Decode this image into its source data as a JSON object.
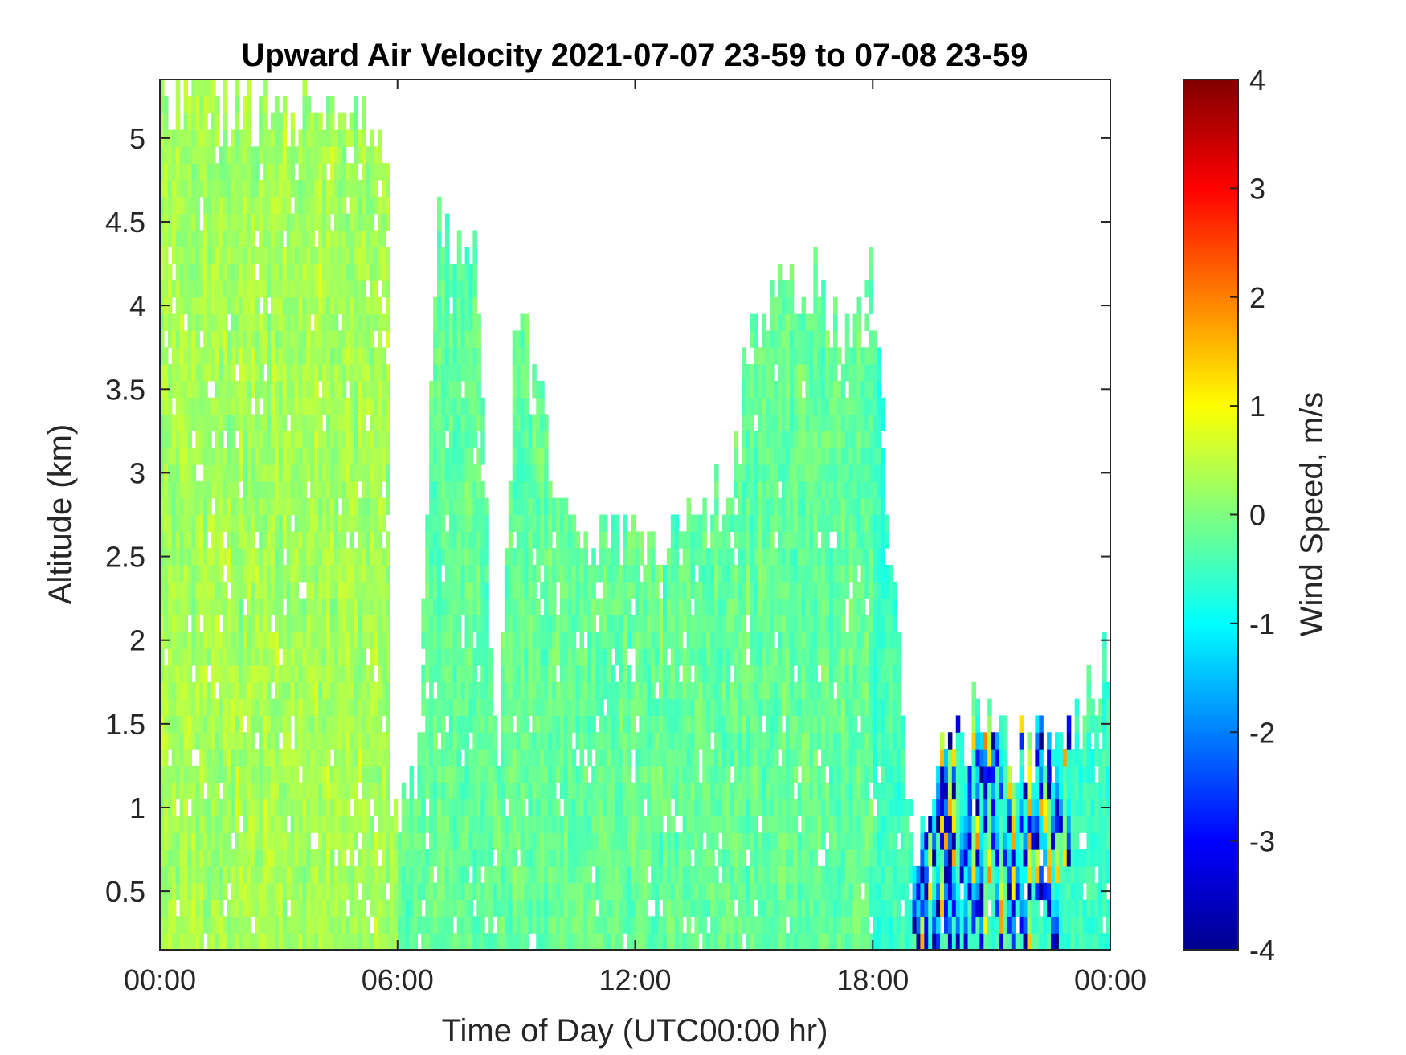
{
  "chart_data": {
    "type": "heatmap",
    "title": "Upward Air Velocity 2021-07-07 23-59 to 07-08 23-59",
    "xlabel": "Time of Day (UTC00:00 hr)",
    "ylabel": "Altitude (km)",
    "x_ticks": [
      "00:00",
      "06:00",
      "12:00",
      "18:00",
      "00:00"
    ],
    "x_range_hours": [
      0,
      24
    ],
    "y_ticks": [
      0.5,
      1,
      1.5,
      2,
      2.5,
      3,
      3.5,
      4,
      4.5,
      5
    ],
    "ylim": [
      0.15,
      5.35
    ],
    "colorbar": {
      "label": "Wind Speed, m/s",
      "ticks": [
        4,
        3,
        2,
        1,
        0,
        -1,
        -2,
        -3,
        -4
      ],
      "range": [
        -4,
        4
      ],
      "colormap": "jet"
    },
    "no_data_color": "#ffffff",
    "data_ceiling_profile_km": [
      [
        0,
        5.3
      ],
      [
        5.8,
        5.0
      ],
      [
        5.85,
        1.0
      ],
      [
        6.5,
        1.1
      ],
      [
        7.0,
        4.5
      ],
      [
        8.0,
        4.3
      ],
      [
        8.5,
        1.2
      ],
      [
        9.0,
        4.0
      ],
      [
        10.0,
        3.0
      ],
      [
        11.0,
        2.7
      ],
      [
        12.0,
        2.6
      ],
      [
        12.5,
        2.5
      ],
      [
        13.5,
        2.6
      ],
      [
        14.5,
        3.0
      ],
      [
        15.0,
        4.0
      ],
      [
        16.5,
        4.1
      ],
      [
        17.5,
        3.7
      ],
      [
        18.0,
        4.2
      ],
      [
        19.0,
        0.7
      ],
      [
        20.0,
        1.4
      ],
      [
        21.0,
        1.5
      ],
      [
        22.0,
        1.3
      ],
      [
        23.0,
        1.4
      ],
      [
        24.0,
        2.0
      ]
    ],
    "dominant_values_m_s": {
      "00:00-06:00": 0.3,
      "06:00-18:00": -0.2,
      "18:00-24:00": -0.5
    },
    "strong_downdrafts_m_s": {
      "time_range": [
        "19:00",
        "23:00"
      ],
      "altitude_km": [
        0.15,
        1.5
      ],
      "min_value": -4
    },
    "updrafts_m_s": {
      "time_range": [
        "19:00",
        "20:00"
      ],
      "altitude_km": [
        0.15,
        1.5
      ],
      "max_value": 2
    }
  }
}
